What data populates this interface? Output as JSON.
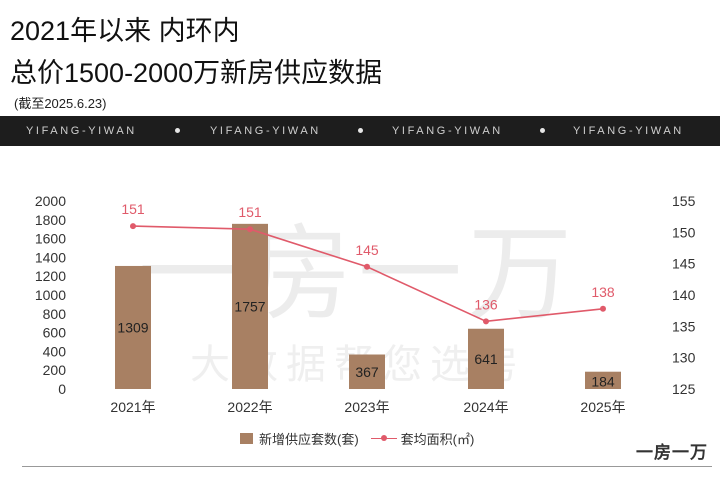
{
  "title": {
    "line1": "2021年以来 内环内",
    "line2": "总价1500-2000万新房供应数据",
    "as_of": "(截至2025.6.23)"
  },
  "banner": {
    "items": [
      "YIFANG-YIWAN",
      "YIFANG-YIWAN",
      "YIFANG-YIWAN",
      "YIFANG-YIWAN"
    ]
  },
  "watermark": {
    "big": "一房一万",
    "small": "大数据帮您选房"
  },
  "logo": "一房一万",
  "chart_data": {
    "type": "bar",
    "categories": [
      "2021年",
      "2022年",
      "2023年",
      "2024年",
      "2025年"
    ],
    "series": [
      {
        "name": "新增供应套数(套)",
        "type": "bar",
        "axis": "left",
        "values": [
          1309,
          1757,
          367,
          641,
          184
        ],
        "color": "#a88063"
      },
      {
        "name": "套均面积(㎡)",
        "type": "line",
        "axis": "right",
        "values": [
          151,
          151,
          145,
          136,
          138
        ],
        "plot_values": [
          151,
          150.5,
          144.5,
          135.8,
          137.8
        ],
        "color": "#e05a6a"
      }
    ],
    "y_left": {
      "min": 0,
      "max": 2000,
      "ticks": [
        0,
        200,
        400,
        600,
        800,
        1000,
        1200,
        1400,
        1600,
        1800,
        2000
      ]
    },
    "y_right": {
      "min": 125,
      "max": 155,
      "ticks": [
        125,
        130,
        135,
        140,
        145,
        150,
        155
      ]
    },
    "grid": false,
    "legend_position": "bottom-center"
  }
}
